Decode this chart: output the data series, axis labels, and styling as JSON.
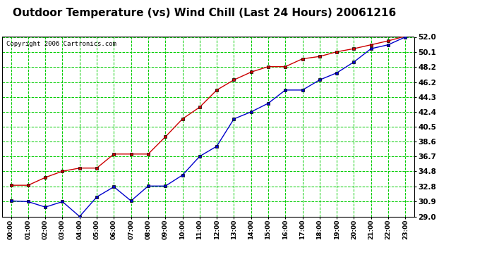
{
  "title": "Outdoor Temperature (vs) Wind Chill (Last 24 Hours) 20061216",
  "copyright": "Copyright 2006 Cartronics.com",
  "x_labels": [
    "00:00",
    "01:00",
    "02:00",
    "03:00",
    "04:00",
    "05:00",
    "06:00",
    "07:00",
    "08:00",
    "09:00",
    "10:00",
    "11:00",
    "12:00",
    "13:00",
    "14:00",
    "15:00",
    "16:00",
    "17:00",
    "18:00",
    "19:00",
    "20:00",
    "21:00",
    "22:00",
    "23:00"
  ],
  "temp_red": [
    33.0,
    33.0,
    34.0,
    34.8,
    35.2,
    35.2,
    37.0,
    37.0,
    37.0,
    39.2,
    41.5,
    43.0,
    45.2,
    46.5,
    47.5,
    48.2,
    48.2,
    49.2,
    49.5,
    50.1,
    50.5,
    51.0,
    51.5,
    52.1
  ],
  "wind_blue": [
    31.0,
    30.9,
    30.2,
    30.9,
    29.0,
    31.5,
    32.8,
    31.0,
    32.9,
    32.9,
    34.3,
    36.7,
    38.0,
    41.5,
    42.4,
    43.5,
    45.2,
    45.2,
    46.5,
    47.4,
    48.8,
    50.5,
    51.0,
    52.0
  ],
  "y_ticks": [
    29.0,
    30.9,
    32.8,
    34.8,
    36.7,
    38.6,
    40.5,
    42.4,
    44.3,
    46.2,
    48.2,
    50.1,
    52.0
  ],
  "y_min": 29.0,
  "y_max": 52.0,
  "bg_color": "#ffffff",
  "plot_bg_color": "#ffffff",
  "grid_color": "#00cc00",
  "red_color": "#cc0000",
  "blue_color": "#0000cc",
  "title_fontsize": 11,
  "copyright_fontsize": 6.5
}
